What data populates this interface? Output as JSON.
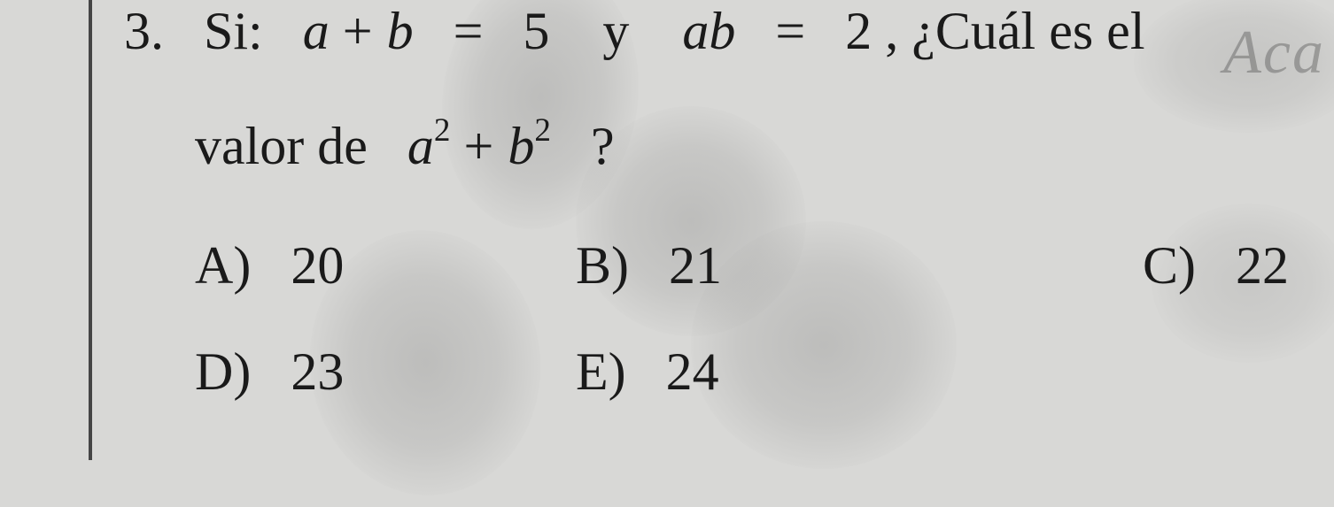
{
  "question": {
    "number": "3.",
    "prefix": "Si:",
    "eq1_lhs_a": "a",
    "eq1_plus": "+",
    "eq1_lhs_b": "b",
    "eq1_eq": "=",
    "eq1_rhs": "5",
    "connector": "y",
    "eq2_lhs": "ab",
    "eq2_eq": "=",
    "eq2_rhs": "2",
    "tail": ", ¿Cuál es el",
    "line2_prefix": "valor de",
    "expr_a": "a",
    "expr_a_exp": "2",
    "expr_plus": "+",
    "expr_b": "b",
    "expr_b_exp": "2",
    "line2_q": "?"
  },
  "options": {
    "A": {
      "label": "A)",
      "value": "20"
    },
    "B": {
      "label": "B)",
      "value": "21"
    },
    "C": {
      "label": "C)",
      "value": "22"
    },
    "D": {
      "label": "D)",
      "value": "23"
    },
    "E": {
      "label": "E)",
      "value": "24"
    }
  },
  "handwriting": "Aca",
  "style": {
    "background_color": "#d8d8d6",
    "text_color": "#1a1a1a",
    "font_family": "Times New Roman",
    "base_fontsize_pt": 45
  }
}
